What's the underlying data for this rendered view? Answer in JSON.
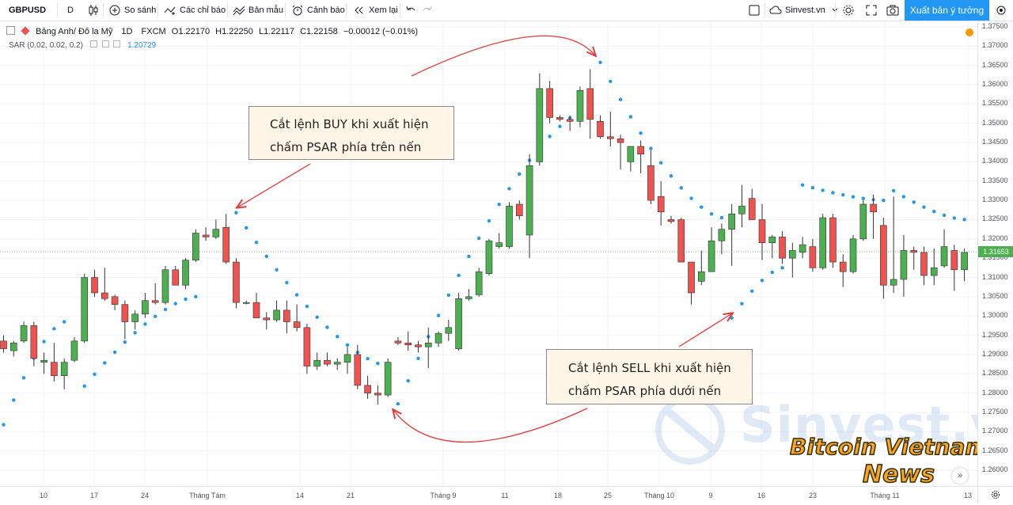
{
  "toolbar": {
    "symbol": "GBPUSD",
    "interval": "D",
    "compare_label": "So sánh",
    "indicators_label": "Các chỉ báo",
    "templates_label": "Bản mẫu",
    "alert_label": "Cảnh báo",
    "replay_label": "Xem lại",
    "account_label": "Sinvest.vn",
    "publish_label": "Xuất bản ý tưởng"
  },
  "legend": {
    "name": "Bảng Anh/ Đô la Mỹ",
    "interval": "1D",
    "exchange": "FXCM",
    "open": "O1.22170",
    "high": "H1.22250",
    "low": "L1.22117",
    "close": "C1.22158",
    "change": "−0.00012 (−0.01%)",
    "indicator": "SAR (0.02, 0.02, 0.2)",
    "indicator_value": "1.20729"
  },
  "callouts": {
    "buy_line1": "Cắt lệnh BUY khi xuất hiện",
    "buy_line2": "chấm PSAR phía trên nến",
    "sell_line1": "Cắt lệnh SELL khi xuất hiện",
    "sell_line2": "chấm PSAR phía dưới nến"
  },
  "watermarks": {
    "site": "Sinvest.vn",
    "brand_line1": "Bitcoin Vietnam",
    "brand_line2": "News"
  },
  "price_axis": {
    "labels": [
      "1.37500",
      "1.37000",
      "1.36500",
      "1.36000",
      "1.35500",
      "1.35000",
      "1.34500",
      "1.34000",
      "1.33500",
      "1.33000",
      "1.32500",
      "1.32000",
      "1.31500",
      "1.31000",
      "1.30500",
      "1.30000",
      "1.29500",
      "1.29000",
      "1.28500",
      "1.28000",
      "1.27500",
      "1.27000",
      "1.26500",
      "1.26000"
    ],
    "current_price": "1.31653"
  },
  "time_axis": {
    "labels": [
      "10",
      "17",
      "24",
      "Tháng Tám",
      "14",
      "21",
      "Tháng 9",
      "11",
      "18",
      "25",
      "Tháng 10",
      "9",
      "16",
      "23",
      "Tháng 11",
      "13"
    ]
  },
  "colors": {
    "up": "#4caf50",
    "down": "#ef5350",
    "sar": "#2196f3",
    "accent": "#2196f3",
    "arrow": "#e53935",
    "callout_bg": "#fff6e8"
  },
  "chart_data": {
    "type": "candlestick",
    "symbol": "GBPUSD",
    "ylim": [
      1.258,
      1.376
    ],
    "candles": [
      [
        1.2935,
        1.295,
        1.2905,
        1.2915
      ],
      [
        1.291,
        1.2935,
        1.2895,
        1.293
      ],
      [
        1.2935,
        1.2985,
        1.293,
        1.2975
      ],
      [
        1.2975,
        1.2985,
        1.287,
        1.289
      ],
      [
        1.288,
        1.2905,
        1.285,
        1.2885
      ],
      [
        1.288,
        1.293,
        1.283,
        1.2845
      ],
      [
        1.2845,
        1.289,
        1.281,
        1.288
      ],
      [
        1.2885,
        1.2945,
        1.288,
        1.2935
      ],
      [
        1.2935,
        1.311,
        1.293,
        1.31
      ],
      [
        1.31,
        1.312,
        1.305,
        1.306
      ],
      [
        1.306,
        1.3125,
        1.304,
        1.3045
      ],
      [
        1.305,
        1.3055,
        1.3015,
        1.303
      ],
      [
        1.303,
        1.304,
        1.294,
        1.2985
      ],
      [
        1.2985,
        1.3015,
        1.2965,
        1.3005
      ],
      [
        1.3005,
        1.306,
        1.2995,
        1.304
      ],
      [
        1.304,
        1.3085,
        1.303,
        1.3035
      ],
      [
        1.3035,
        1.313,
        1.303,
        1.312
      ],
      [
        1.312,
        1.313,
        1.308,
        1.308
      ],
      [
        1.308,
        1.315,
        1.307,
        1.3145
      ],
      [
        1.3145,
        1.3225,
        1.314,
        1.3215
      ],
      [
        1.321,
        1.323,
        1.3195,
        1.3205
      ],
      [
        1.3205,
        1.325,
        1.32,
        1.3225
      ],
      [
        1.323,
        1.3265,
        1.3135,
        1.314
      ],
      [
        1.314,
        1.315,
        1.302,
        1.3035
      ],
      [
        1.3035,
        1.304,
        1.303,
        1.3035
      ],
      [
        1.3035,
        1.306,
        1.2995,
        1.2995
      ],
      [
        1.2995,
        1.301,
        1.2965,
        1.299
      ],
      [
        1.299,
        1.304,
        1.2985,
        1.3015
      ],
      [
        1.3015,
        1.304,
        1.2955,
        1.2985
      ],
      [
        1.2985,
        1.303,
        1.296,
        1.297
      ],
      [
        1.297,
        1.298,
        1.285,
        1.287
      ],
      [
        1.287,
        1.2905,
        1.286,
        1.2885
      ],
      [
        1.2885,
        1.2905,
        1.287,
        1.2875
      ],
      [
        1.2875,
        1.289,
        1.286,
        1.288
      ],
      [
        1.288,
        1.292,
        1.285,
        1.29
      ],
      [
        1.29,
        1.2925,
        1.281,
        1.282
      ],
      [
        1.282,
        1.2845,
        1.2785,
        1.28
      ],
      [
        1.28,
        1.282,
        1.277,
        1.2795
      ],
      [
        1.2795,
        1.289,
        1.279,
        1.288
      ],
      [
        1.2935,
        1.2945,
        1.2925,
        1.293
      ],
      [
        1.293,
        1.296,
        1.291,
        1.2925
      ],
      [
        1.2925,
        1.2935,
        1.2905,
        1.292
      ],
      [
        1.292,
        1.297,
        1.2865,
        1.293
      ],
      [
        1.293,
        1.296,
        1.292,
        1.2955
      ],
      [
        1.2955,
        1.299,
        1.2935,
        1.297
      ],
      [
        1.2915,
        1.306,
        1.291,
        1.3045
      ],
      [
        1.3045,
        1.307,
        1.304,
        1.305
      ],
      [
        1.3055,
        1.3125,
        1.305,
        1.3115
      ],
      [
        1.311,
        1.32,
        1.3105,
        1.3195
      ],
      [
        1.318,
        1.3215,
        1.3175,
        1.319
      ],
      [
        1.318,
        1.3295,
        1.3175,
        1.3285
      ],
      [
        1.329,
        1.33,
        1.325,
        1.326
      ],
      [
        1.321,
        1.342,
        1.315,
        1.339
      ],
      [
        1.34,
        1.363,
        1.339,
        1.359
      ],
      [
        1.359,
        1.361,
        1.35,
        1.3515
      ],
      [
        1.3515,
        1.352,
        1.3505,
        1.351
      ],
      [
        1.351,
        1.352,
        1.348,
        1.3505
      ],
      [
        1.3505,
        1.3595,
        1.349,
        1.3585
      ],
      [
        1.359,
        1.364,
        1.346,
        1.351
      ],
      [
        1.3505,
        1.352,
        1.346,
        1.3465
      ],
      [
        1.3465,
        1.353,
        1.344,
        1.346
      ],
      [
        1.346,
        1.347,
        1.338,
        1.345
      ],
      [
        1.34,
        1.344,
        1.3375,
        1.344
      ],
      [
        1.344,
        1.3455,
        1.337,
        1.342
      ],
      [
        1.339,
        1.343,
        1.329,
        1.33
      ],
      [
        1.331,
        1.335,
        1.3235,
        1.327
      ],
      [
        1.325,
        1.326,
        1.324,
        1.3245
      ],
      [
        1.325,
        1.3255,
        1.315,
        1.314
      ],
      [
        1.314,
        1.314,
        1.303,
        1.306
      ],
      [
        1.309,
        1.317,
        1.308,
        1.3115
      ],
      [
        1.3115,
        1.323,
        1.3115,
        1.3195
      ],
      [
        1.3195,
        1.324,
        1.316,
        1.3225
      ],
      [
        1.3225,
        1.329,
        1.313,
        1.3265
      ],
      [
        1.3265,
        1.334,
        1.323,
        1.3285
      ],
      [
        1.3305,
        1.333,
        1.325,
        1.325
      ],
      [
        1.325,
        1.329,
        1.3145,
        1.319
      ],
      [
        1.319,
        1.321,
        1.315,
        1.3205
      ],
      [
        1.3205,
        1.322,
        1.3135,
        1.315
      ],
      [
        1.315,
        1.319,
        1.31,
        1.317
      ],
      [
        1.3165,
        1.3205,
        1.315,
        1.3185
      ],
      [
        1.318,
        1.32,
        1.3115,
        1.3125
      ],
      [
        1.3125,
        1.3265,
        1.312,
        1.3255
      ],
      [
        1.3255,
        1.3265,
        1.3125,
        1.314
      ],
      [
        1.314,
        1.316,
        1.3075,
        1.3115
      ],
      [
        1.3115,
        1.321,
        1.311,
        1.32
      ],
      [
        1.32,
        1.33,
        1.3195,
        1.329
      ],
      [
        1.329,
        1.3315,
        1.32,
        1.327
      ],
      [
        1.3235,
        1.3255,
        1.3045,
        1.308
      ],
      [
        1.308,
        1.331,
        1.306,
        1.3095
      ],
      [
        1.3095,
        1.321,
        1.305,
        1.317
      ],
      [
        1.317,
        1.318,
        1.312,
        1.3165
      ],
      [
        1.3165,
        1.318,
        1.308,
        1.3105
      ],
      [
        1.3105,
        1.3175,
        1.308,
        1.3125
      ],
      [
        1.313,
        1.3225,
        1.3125,
        1.318
      ],
      [
        1.317,
        1.3185,
        1.3065,
        1.312
      ],
      [
        1.312,
        1.3175,
        1.309,
        1.3165
      ]
    ],
    "sar_segments": [
      {
        "position": "below",
        "start": 1.2718,
        "end": 1.2985
      },
      {
        "position": "below",
        "start": 1.2818,
        "end": 1.305
      },
      {
        "position": "above",
        "start": 1.3268,
        "end": 1.287
      },
      {
        "position": "below",
        "start": 1.2772,
        "end": 1.354
      },
      {
        "position": "above",
        "start": 1.3658,
        "end": 1.3255
      },
      {
        "position": "below",
        "start": 1.2995,
        "end": 1.3125
      },
      {
        "position": "above",
        "start": 1.334,
        "end": 1.33
      },
      {
        "position": "above",
        "start": 1.3325,
        "end": 1.325
      }
    ]
  }
}
